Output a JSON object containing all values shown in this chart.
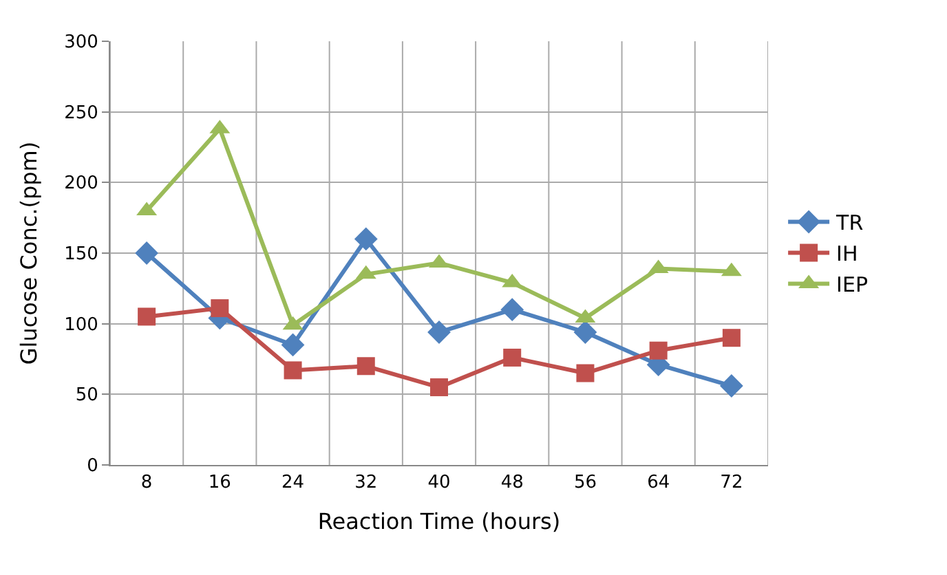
{
  "chart_data": {
    "type": "line",
    "xlabel": "Reaction Time (hours)",
    "ylabel": "Glucose Conc.(ppm)",
    "categories": [
      "8",
      "16",
      "24",
      "32",
      "40",
      "48",
      "56",
      "64",
      "72"
    ],
    "series": [
      {
        "name": "TR",
        "color": "#4f81bd",
        "marker": "diamond",
        "values": [
          150,
          104,
          85,
          160,
          94,
          110,
          94,
          71,
          56
        ]
      },
      {
        "name": "IH",
        "color": "#c0504d",
        "marker": "square",
        "values": [
          105,
          111,
          67,
          70,
          55,
          76,
          65,
          81,
          90
        ]
      },
      {
        "name": "IEP",
        "color": "#9bbb59",
        "marker": "triangle",
        "values": [
          180,
          238,
          99,
          135,
          143,
          129,
          104,
          139,
          137
        ]
      }
    ],
    "ylim": [
      0,
      300
    ],
    "yticks": [
      0,
      50,
      100,
      150,
      200,
      250,
      300
    ],
    "grid": true,
    "legend": "right",
    "line_style": "solid"
  }
}
